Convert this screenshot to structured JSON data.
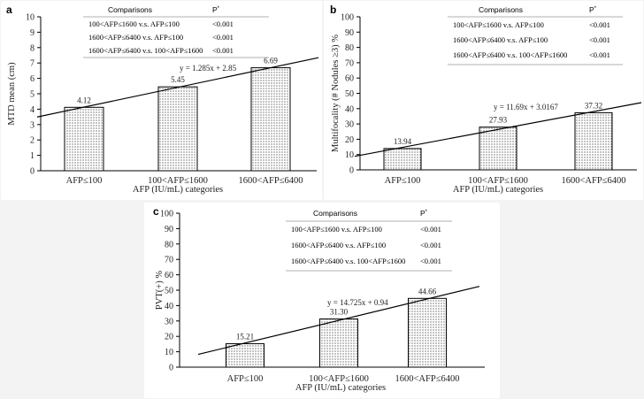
{
  "x_axis_title": "AFP (IU/mL) categories",
  "comparisons_header": "Comparisons",
  "p_header": "P",
  "p_header_sup": "*",
  "charts": [
    {
      "id": "a",
      "letter": "a",
      "ylabel": "MTD mean (cm)",
      "ylim": [
        0,
        10
      ],
      "yticks": [
        0,
        1,
        2,
        3,
        4,
        5,
        6,
        7,
        8,
        9,
        10
      ],
      "categories": [
        "AFP≤100",
        "100<AFP≤1600",
        "1600<AFP≤6400"
      ],
      "values": [
        4.12,
        5.45,
        6.69
      ],
      "value_labels": [
        "4.12",
        "5.45",
        "6.69"
      ],
      "equation": "y = 1.285x + 2.85",
      "trend": {
        "slope": 1.285,
        "intercept": 2.85
      },
      "comparisons": [
        {
          "label": "100<AFP≤1600 v.s. AFP≤100",
          "p": "<0.001"
        },
        {
          "label": "1600<AFP≤6400 v.s. AFP≤100",
          "p": "<0.001"
        },
        {
          "label": "1600<AFP≤6400 v.s. 100<AFP≤1600",
          "p": "<0.001"
        }
      ]
    },
    {
      "id": "b",
      "letter": "b",
      "ylabel": "Multifocality (# Nodules ≥3) %",
      "ylim": [
        0,
        100
      ],
      "yticks": [
        0,
        10,
        20,
        30,
        40,
        50,
        60,
        70,
        80,
        90,
        100
      ],
      "categories": [
        "AFP≤100",
        "100<AFP≤1600",
        "1600<AFP≤6400"
      ],
      "values": [
        13.94,
        27.93,
        37.32
      ],
      "value_labels": [
        "13.94",
        "27.93",
        "37.32"
      ],
      "equation": "y = 11.69x + 3.0167",
      "trend": {
        "slope": 11.69,
        "intercept": 3.0167
      },
      "comparisons": [
        {
          "label": "100<AFP≤1600 v.s. AFP≤100",
          "p": "<0.001"
        },
        {
          "label": "1600<AFP≤6400 v.s. AFP≤100",
          "p": "<0.001"
        },
        {
          "label": "1600<AFP≤6400 v.s. 100<AFP≤1600",
          "p": "<0.001"
        }
      ]
    },
    {
      "id": "c",
      "letter": "c",
      "ylabel": "PVT(+) %",
      "ylim": [
        0,
        100
      ],
      "yticks": [
        0,
        10,
        20,
        30,
        40,
        50,
        60,
        70,
        80,
        90,
        100
      ],
      "categories": [
        "AFP≤100",
        "100<AFP≤1600",
        "1600<AFP≤6400"
      ],
      "values": [
        15.21,
        31.3,
        44.66
      ],
      "value_labels": [
        "15.21",
        "31.30",
        "44.66"
      ],
      "equation": "y = 14.725x + 0.94",
      "trend": {
        "slope": 14.725,
        "intercept": 0.94
      },
      "comparisons": [
        {
          "label": "100<AFP≤1600 v.s. AFP≤100",
          "p": "<0.001"
        },
        {
          "label": "1600<AFP≤6400 v.s. AFP≤100",
          "p": "<0.001"
        },
        {
          "label": "1600<AFP≤6400 v.s. 100<AFP≤1600",
          "p": "<0.001"
        }
      ]
    }
  ],
  "chart_data": [
    {
      "type": "bar",
      "title": "a",
      "xlabel": "AFP (IU/mL) categories",
      "ylabel": "MTD mean (cm)",
      "categories": [
        "AFP≤100",
        "100<AFP≤1600",
        "1600<AFP≤6400"
      ],
      "values": [
        4.12,
        5.45,
        6.69
      ],
      "ylim": [
        0,
        10
      ],
      "trendline": "y = 1.285x + 2.85"
    },
    {
      "type": "bar",
      "title": "b",
      "xlabel": "AFP (IU/mL) categories",
      "ylabel": "Multifocality (# Nodules ≥3) %",
      "categories": [
        "AFP≤100",
        "100<AFP≤1600",
        "1600<AFP≤6400"
      ],
      "values": [
        13.94,
        27.93,
        37.32
      ],
      "ylim": [
        0,
        100
      ],
      "trendline": "y = 11.69x + 3.0167"
    },
    {
      "type": "bar",
      "title": "c",
      "xlabel": "AFP (IU/mL) categories",
      "ylabel": "PVT(+) %",
      "categories": [
        "AFP≤100",
        "100<AFP≤1600",
        "1600<AFP≤6400"
      ],
      "values": [
        15.21,
        31.3,
        44.66
      ],
      "ylim": [
        0,
        100
      ],
      "trendline": "y = 14.725x + 0.94"
    }
  ]
}
